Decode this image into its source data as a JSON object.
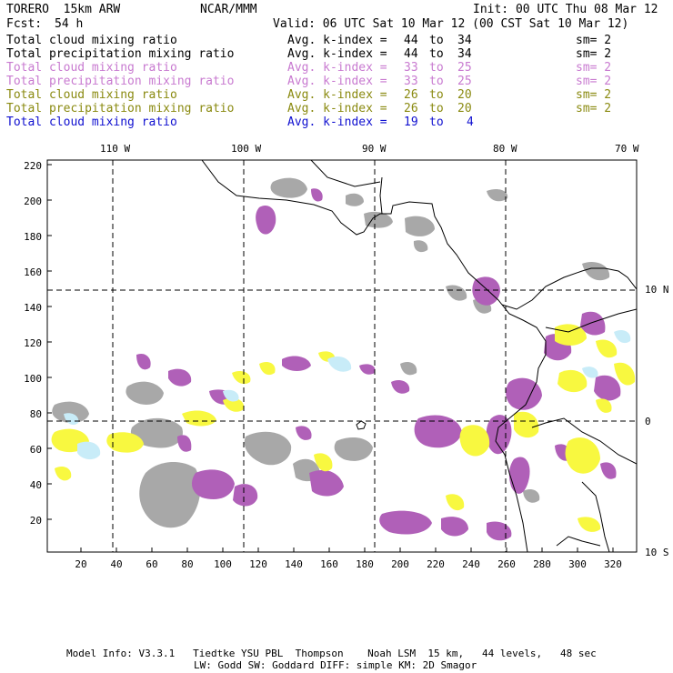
{
  "header": {
    "model": "TORERO  15km ARW",
    "org": "NCAR/MMM",
    "init": "Init: 00 UTC Thu 08 Mar 12",
    "fcst_label": "Fcst:",
    "fcst_value": "54 h",
    "valid": "Valid: 06 UTC Sat 10 Mar 12 (00 CST Sat 10 Mar 12)"
  },
  "legend": [
    {
      "field": "Total cloud mixing ratio",
      "kindex_label": "Avg. k-index =",
      "from": "44",
      "to_word": "to",
      "to": "34",
      "sm": "sm= 2",
      "color": "#000000"
    },
    {
      "field": "Total precipitation mixing ratio",
      "kindex_label": "Avg. k-index =",
      "from": "44",
      "to_word": "to",
      "to": "34",
      "sm": "sm= 2",
      "color": "#000000"
    },
    {
      "field": "Total cloud mixing ratio",
      "kindex_label": "Avg. k-index =",
      "from": "33",
      "to_word": "to",
      "to": "25",
      "sm": "sm= 2",
      "color": "#c87ad0"
    },
    {
      "field": "Total precipitation mixing ratio",
      "kindex_label": "Avg. k-index =",
      "from": "33",
      "to_word": "to",
      "to": "25",
      "sm": "sm= 2",
      "color": "#c87ad0"
    },
    {
      "field": "Total cloud mixing ratio",
      "kindex_label": "Avg. k-index =",
      "from": "26",
      "to_word": "to",
      "to": "20",
      "sm": "sm= 2",
      "color": "#8a8a10"
    },
    {
      "field": "Total precipitation mixing ratio",
      "kindex_label": "Avg. k-index =",
      "from": "26",
      "to_word": "to",
      "to": "20",
      "sm": "sm= 2",
      "color": "#8a8a10"
    },
    {
      "field": "Total cloud mixing ratio",
      "kindex_label": "Avg. k-index =",
      "from": "19",
      "to_word": "to",
      "to": "4",
      "sm": "",
      "color": "#1010d0"
    }
  ],
  "axes": {
    "lon_labels": [
      "110 W",
      "100 W",
      "90 W",
      "80 W",
      "70 W"
    ],
    "lat_labels": [
      "10 N",
      "0",
      "10 S"
    ],
    "y_ticks": [
      "220",
      "200",
      "180",
      "160",
      "140",
      "120",
      "100",
      "80",
      "60",
      "40",
      "20"
    ],
    "x_ticks": [
      "20",
      "40",
      "60",
      "80",
      "100",
      "120",
      "140",
      "160",
      "180",
      "200",
      "220",
      "240",
      "260",
      "280",
      "300",
      "320"
    ]
  },
  "colors": {
    "gray": "#a8a8a8",
    "purple": "#b060b8",
    "yellow": "#f8f840",
    "lightblue": "#c8ecf8"
  },
  "footer": {
    "line1": "Model Info: V3.3.1   Tiedtke YSU PBL  Thompson    Noah LSM  15 km,   44 levels,   48 sec",
    "line2": "LW: Godd SW: Goddard DIFF: simple KM: 2D Smagor"
  }
}
